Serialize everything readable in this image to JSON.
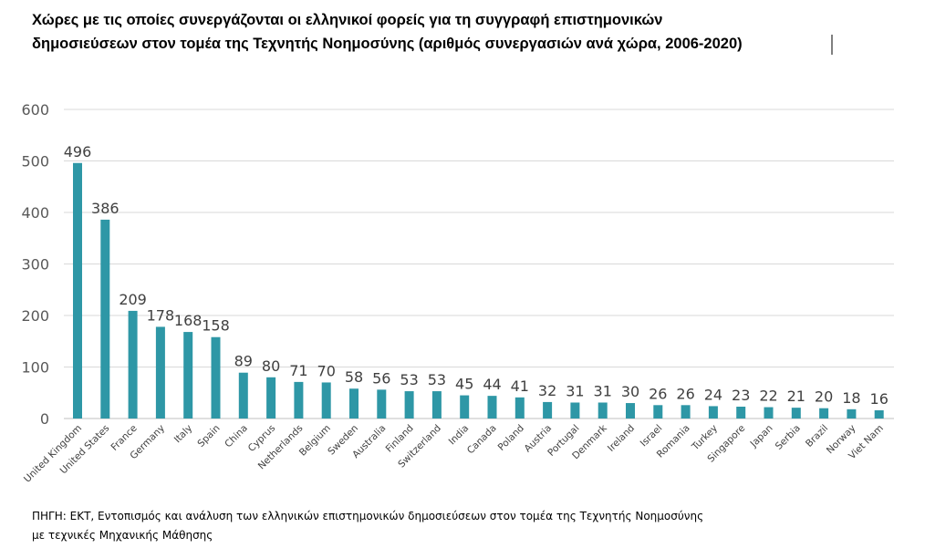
{
  "chart_data": {
    "type": "bar",
    "title": [
      "Χώρες με τις οποίες συνεργάζονται οι ελληνικοί φορείς για τη συγγραφή επιστημονικών",
      "δημοσιεύσεων στον τομέα της Τεχνητής Νοημοσύνης (αριθμός συνεργασιών ανά χώρα, 2006-2020)"
    ],
    "categories": [
      "United Kingdom",
      "United States",
      "France",
      "Germany",
      "Italy",
      "Spain",
      "China",
      "Cyprus",
      "Netherlands",
      "Belgium",
      "Sweden",
      "Australia",
      "Finland",
      "Switzerland",
      "India",
      "Canada",
      "Poland",
      "Austria",
      "Portugal",
      "Denmark",
      "Ireland",
      "Israel",
      "Romania",
      "Turkey",
      "Singapore",
      "Japan",
      "Serbia",
      "Brazil",
      "Norway",
      "Viet Nam"
    ],
    "values": [
      496,
      386,
      209,
      178,
      168,
      158,
      89,
      80,
      71,
      70,
      58,
      56,
      53,
      53,
      45,
      44,
      41,
      32,
      31,
      31,
      30,
      26,
      26,
      24,
      23,
      22,
      21,
      20,
      18,
      16
    ],
    "yticks": [
      "0",
      "100",
      "200",
      "300",
      "400",
      "500",
      "600"
    ],
    "ylim": [
      0,
      600
    ],
    "xlabel": "",
    "ylabel": "",
    "grid": true,
    "bar_color": "#2e97a6",
    "source": [
      "ΠΗΓΗ: ΕΚΤ, Εντοπισμός και ανάλυση των ελληνικών επιστημονικών δημοσιεύσεων στον τομέα της Τεχνητής Νοημοσύνης",
      "με τεχνικές Μηχανικής Μάθησης"
    ]
  }
}
